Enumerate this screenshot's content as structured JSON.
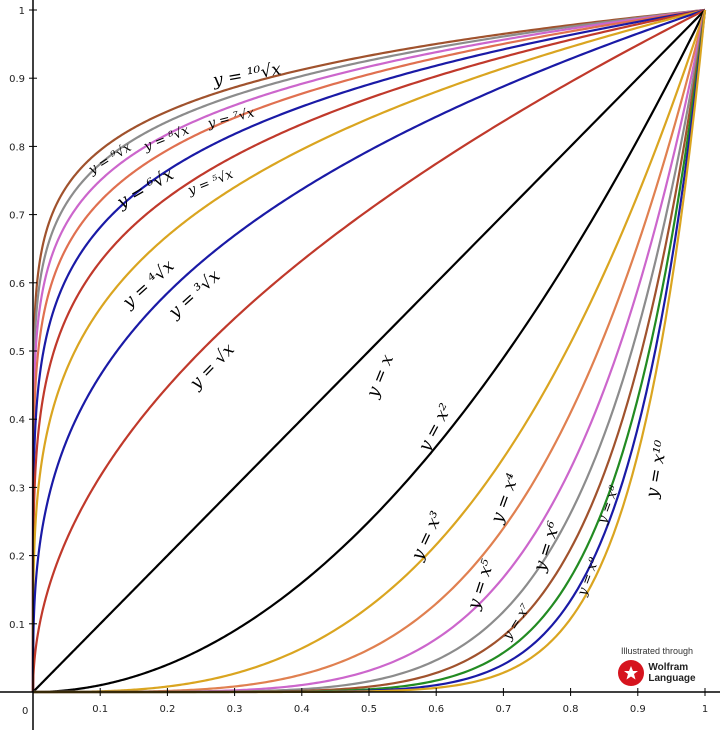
{
  "chart_data": {
    "type": "line",
    "title": "",
    "xlabel": "",
    "ylabel": "",
    "xlim": [
      0,
      1
    ],
    "ylim": [
      0,
      1
    ],
    "grid": false,
    "x_ticks": [
      "0.1",
      "0.2",
      "0.3",
      "0.4",
      "0.5",
      "0.6",
      "0.7",
      "0.8",
      "0.9",
      "1"
    ],
    "y_ticks": [
      "0.1",
      "0.2",
      "0.3",
      "0.4",
      "0.5",
      "0.6",
      "0.7",
      "0.8",
      "0.9",
      "1"
    ],
    "origin_label": "0",
    "series": [
      {
        "label": "y = ¹⁰√x",
        "exponent": 0.1,
        "color": "#a0522d"
      },
      {
        "label": "y = ⁹√x",
        "exponent": 0.1111,
        "color": "#8c8c8c"
      },
      {
        "label": "y = ⁸√x",
        "exponent": 0.125,
        "color": "#cc66cc"
      },
      {
        "label": "y = ⁷√x",
        "exponent": 0.1429,
        "color": "#e07050"
      },
      {
        "label": "y = ⁶√x",
        "exponent": 0.1667,
        "color": "#1a1aa6"
      },
      {
        "label": "y = ⁵√x",
        "exponent": 0.2,
        "color": "#c0392b"
      },
      {
        "label": "y = ⁴√x",
        "exponent": 0.25,
        "color": "#daa520"
      },
      {
        "label": "y = ³√x",
        "exponent": 0.3333,
        "color": "#1a1aa6"
      },
      {
        "label": "y = √x",
        "exponent": 0.5,
        "color": "#c0392b"
      },
      {
        "label": "y = x",
        "exponent": 1,
        "color": "#000000"
      },
      {
        "label": "y = x²",
        "exponent": 2,
        "color": "#000000"
      },
      {
        "label": "y = x³",
        "exponent": 3,
        "color": "#daa520"
      },
      {
        "label": "y = x⁴",
        "exponent": 4,
        "color": "#e08050"
      },
      {
        "label": "y = x⁵",
        "exponent": 5,
        "color": "#cc66cc"
      },
      {
        "label": "y = x⁶",
        "exponent": 6,
        "color": "#8c8c8c"
      },
      {
        "label": "y = x⁷",
        "exponent": 7,
        "color": "#a0522d"
      },
      {
        "label": "y = x⁸",
        "exponent": 8,
        "color": "#228b22"
      },
      {
        "label": "y = x⁹",
        "exponent": 9,
        "color": "#1a1aa6"
      },
      {
        "label": "y = x¹⁰",
        "exponent": 10,
        "color": "#daa520"
      }
    ]
  },
  "badge": {
    "caption": "Illustrated through",
    "brand_line1": "Wolfram",
    "brand_line2": "Language"
  }
}
